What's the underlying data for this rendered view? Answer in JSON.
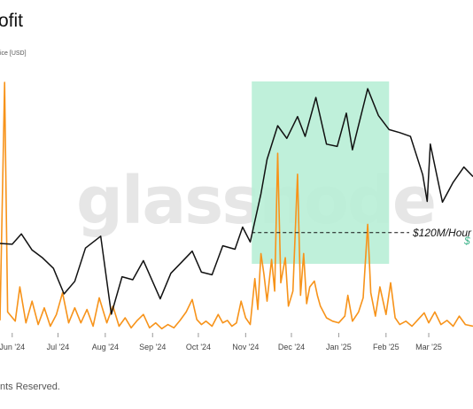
{
  "header": {
    "title": "ofit",
    "legend_text": "ice [USD]"
  },
  "footer": {
    "text": "nts Reserved."
  },
  "watermark": "glassnode",
  "colors": {
    "price_line": "#111111",
    "profit_line": "#f7931a",
    "highlight": "#b8eed6",
    "annotation_green": "#3db38a"
  },
  "chart_data": {
    "type": "line",
    "x_tick_labels": [
      "Jun '24",
      "Jul '24",
      "Aug '24",
      "Sep '24",
      "Oct '24",
      "Nov '24",
      "Dec '24",
      "Jan '25",
      "Feb '25",
      "Mar '25"
    ],
    "x_tick_dates": [
      "2024-06-01",
      "2024-07-01",
      "2024-08-01",
      "2024-09-01",
      "2024-10-01",
      "2024-11-01",
      "2024-12-01",
      "2025-01-01",
      "2025-02-01",
      "2025-03-01"
    ],
    "x_range": [
      "2024-05-24",
      "2025-03-30"
    ],
    "highlight_range": [
      "2024-11-05",
      "2025-02-03"
    ],
    "threshold": {
      "label": "$120M/Hour",
      "value": 120
    },
    "annotation_partial": "$",
    "series": [
      {
        "name": "Price [USD]",
        "axis": "right",
        "points": [
          [
            "2024-05-24",
            68000
          ],
          [
            "2024-06-01",
            67800
          ],
          [
            "2024-06-07",
            70500
          ],
          [
            "2024-06-14",
            66300
          ],
          [
            "2024-06-21",
            64200
          ],
          [
            "2024-06-28",
            61500
          ],
          [
            "2024-07-05",
            54800
          ],
          [
            "2024-07-12",
            58100
          ],
          [
            "2024-07-19",
            66800
          ],
          [
            "2024-07-29",
            69900
          ],
          [
            "2024-08-05",
            49500
          ],
          [
            "2024-08-12",
            59300
          ],
          [
            "2024-08-19",
            58500
          ],
          [
            "2024-08-26",
            63500
          ],
          [
            "2024-09-06",
            53500
          ],
          [
            "2024-09-13",
            60200
          ],
          [
            "2024-09-20",
            63100
          ],
          [
            "2024-09-27",
            66000
          ],
          [
            "2024-10-03",
            60500
          ],
          [
            "2024-10-10",
            59800
          ],
          [
            "2024-10-17",
            67400
          ],
          [
            "2024-10-25",
            66500
          ],
          [
            "2024-10-30",
            72300
          ],
          [
            "2024-11-04",
            68400
          ],
          [
            "2024-11-11",
            81000
          ],
          [
            "2024-11-15",
            90000
          ],
          [
            "2024-11-22",
            98800
          ],
          [
            "2024-11-28",
            95500
          ],
          [
            "2024-12-05",
            101200
          ],
          [
            "2024-12-10",
            96000
          ],
          [
            "2024-12-17",
            106200
          ],
          [
            "2024-12-24",
            94000
          ],
          [
            "2024-12-31",
            93400
          ],
          [
            "2025-01-06",
            102100
          ],
          [
            "2025-01-10",
            92500
          ],
          [
            "2025-01-20",
            108500
          ],
          [
            "2025-01-27",
            101500
          ],
          [
            "2025-02-03",
            97800
          ],
          [
            "2025-02-10",
            97000
          ],
          [
            "2025-02-17",
            96000
          ],
          [
            "2025-02-25",
            86000
          ],
          [
            "2025-02-28",
            79000
          ],
          [
            "2025-03-02",
            94000
          ],
          [
            "2025-03-10",
            78800
          ],
          [
            "2025-03-17",
            84000
          ],
          [
            "2025-03-24",
            88000
          ],
          [
            "2025-03-30",
            85500
          ]
        ]
      },
      {
        "name": "Realized Profit",
        "axis": "left",
        "points": [
          [
            "2024-05-24",
            15
          ],
          [
            "2024-05-27",
            300
          ],
          [
            "2024-05-29",
            25
          ],
          [
            "2024-06-03",
            14
          ],
          [
            "2024-06-06",
            55
          ],
          [
            "2024-06-10",
            12
          ],
          [
            "2024-06-14",
            38
          ],
          [
            "2024-06-18",
            10
          ],
          [
            "2024-06-22",
            30
          ],
          [
            "2024-06-26",
            8
          ],
          [
            "2024-06-30",
            22
          ],
          [
            "2024-07-04",
            48
          ],
          [
            "2024-07-08",
            12
          ],
          [
            "2024-07-12",
            30
          ],
          [
            "2024-07-16",
            12
          ],
          [
            "2024-07-20",
            28
          ],
          [
            "2024-07-24",
            8
          ],
          [
            "2024-07-28",
            42
          ],
          [
            "2024-08-02",
            12
          ],
          [
            "2024-08-06",
            32
          ],
          [
            "2024-08-10",
            8
          ],
          [
            "2024-08-14",
            18
          ],
          [
            "2024-08-18",
            6
          ],
          [
            "2024-08-22",
            15
          ],
          [
            "2024-08-26",
            22
          ],
          [
            "2024-08-30",
            6
          ],
          [
            "2024-09-03",
            12
          ],
          [
            "2024-09-07",
            5
          ],
          [
            "2024-09-11",
            10
          ],
          [
            "2024-09-15",
            6
          ],
          [
            "2024-09-19",
            15
          ],
          [
            "2024-09-23",
            25
          ],
          [
            "2024-09-27",
            40
          ],
          [
            "2024-09-30",
            16
          ],
          [
            "2024-10-03",
            10
          ],
          [
            "2024-10-06",
            14
          ],
          [
            "2024-10-10",
            8
          ],
          [
            "2024-10-14",
            22
          ],
          [
            "2024-10-17",
            12
          ],
          [
            "2024-10-20",
            15
          ],
          [
            "2024-10-23",
            8
          ],
          [
            "2024-10-26",
            12
          ],
          [
            "2024-10-29",
            38
          ],
          [
            "2024-11-01",
            18
          ],
          [
            "2024-11-04",
            10
          ],
          [
            "2024-11-07",
            65
          ],
          [
            "2024-11-09",
            28
          ],
          [
            "2024-11-11",
            95
          ],
          [
            "2024-11-13",
            70
          ],
          [
            "2024-11-15",
            38
          ],
          [
            "2024-11-18",
            88
          ],
          [
            "2024-11-20",
            50
          ],
          [
            "2024-11-22",
            215
          ],
          [
            "2024-11-24",
            60
          ],
          [
            "2024-11-27",
            90
          ],
          [
            "2024-11-29",
            32
          ],
          [
            "2024-12-02",
            50
          ],
          [
            "2024-12-05",
            190
          ],
          [
            "2024-12-07",
            45
          ],
          [
            "2024-12-09",
            95
          ],
          [
            "2024-12-11",
            35
          ],
          [
            "2024-12-13",
            55
          ],
          [
            "2024-12-16",
            62
          ],
          [
            "2024-12-18",
            45
          ],
          [
            "2024-12-20",
            32
          ],
          [
            "2024-12-24",
            18
          ],
          [
            "2024-12-28",
            14
          ],
          [
            "2025-01-01",
            12
          ],
          [
            "2025-01-05",
            20
          ],
          [
            "2025-01-07",
            45
          ],
          [
            "2025-01-10",
            14
          ],
          [
            "2025-01-14",
            25
          ],
          [
            "2025-01-17",
            42
          ],
          [
            "2025-01-20",
            130
          ],
          [
            "2025-01-22",
            48
          ],
          [
            "2025-01-25",
            20
          ],
          [
            "2025-01-28",
            55
          ],
          [
            "2025-02-01",
            22
          ],
          [
            "2025-02-04",
            60
          ],
          [
            "2025-02-07",
            18
          ],
          [
            "2025-02-10",
            10
          ],
          [
            "2025-02-14",
            14
          ],
          [
            "2025-02-18",
            8
          ],
          [
            "2025-02-22",
            16
          ],
          [
            "2025-02-26",
            24
          ],
          [
            "2025-03-01",
            12
          ],
          [
            "2025-03-05",
            25
          ],
          [
            "2025-03-09",
            10
          ],
          [
            "2025-03-13",
            15
          ],
          [
            "2025-03-17",
            8
          ],
          [
            "2025-03-21",
            20
          ],
          [
            "2025-03-25",
            10
          ],
          [
            "2025-03-30",
            8
          ]
        ]
      }
    ]
  }
}
